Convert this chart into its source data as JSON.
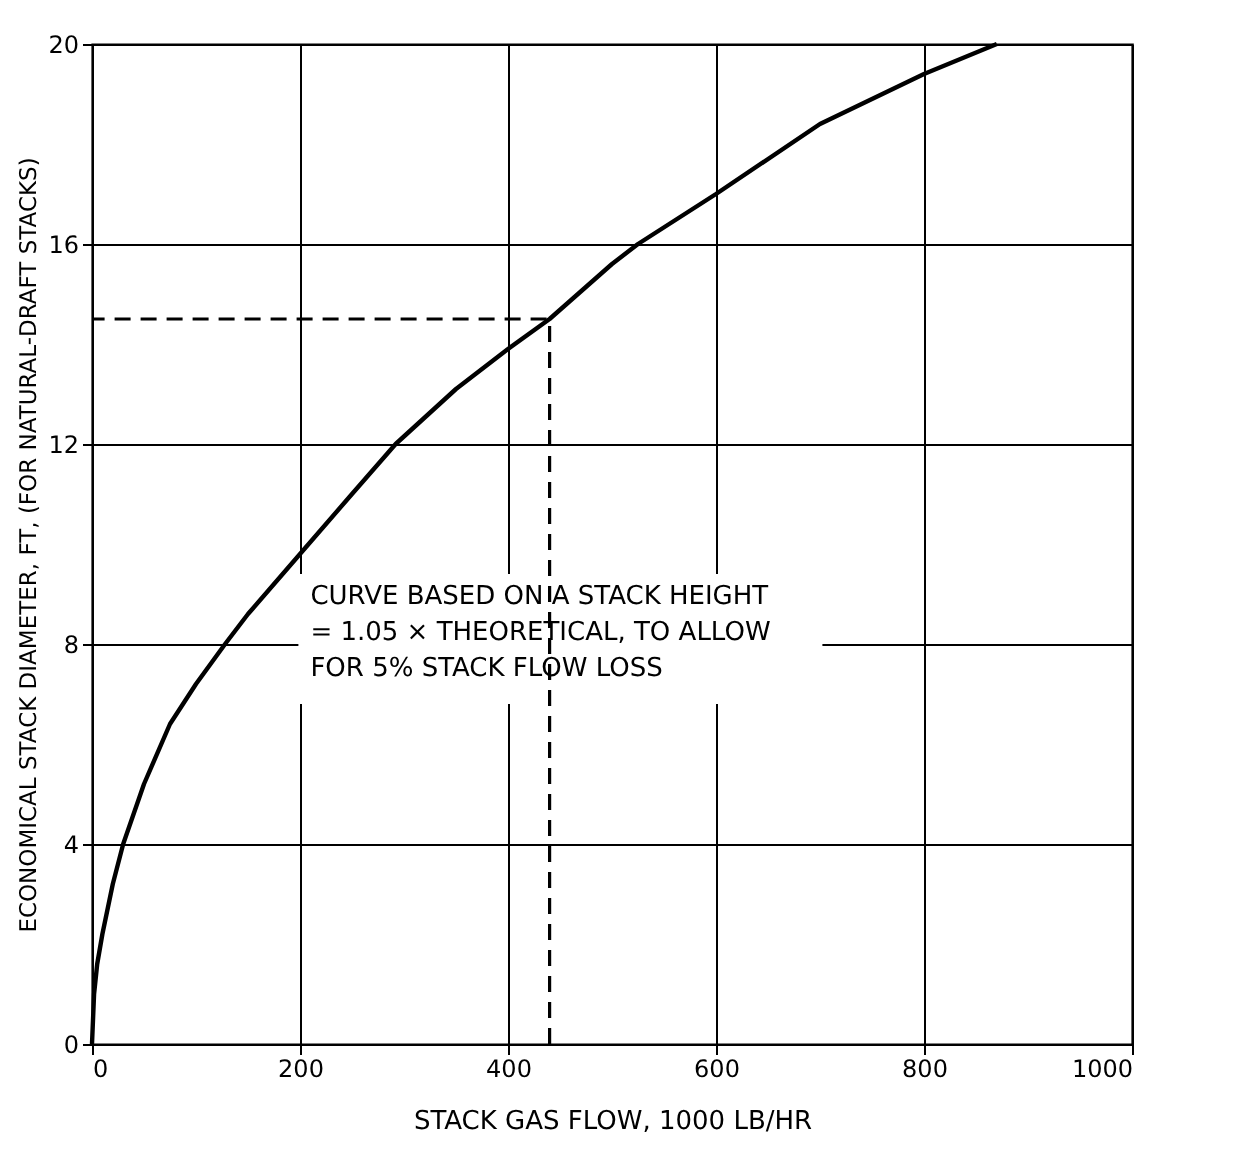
{
  "chart_data": {
    "type": "line",
    "xlabel": "STACK GAS FLOW, 1000 LB/HR",
    "ylabel": "ECONOMICAL STACK DIAMETER, FT, (FOR NATURAL-DRAFT STACKS)",
    "xlim": [
      0,
      1000
    ],
    "xticks": [
      0,
      200,
      400,
      600,
      800,
      1000
    ],
    "ylim": [
      0,
      20
    ],
    "yticks": [
      0,
      4,
      8,
      12,
      16,
      20
    ],
    "grid": true,
    "marker": "none",
    "series": [
      {
        "color": "#000000",
        "line_style": "solid",
        "x": [
          0,
          2,
          5,
          10,
          20,
          30,
          50,
          75,
          100,
          128,
          150,
          200,
          250,
          292,
          350,
          400,
          440,
          500,
          525,
          600,
          700,
          800,
          870
        ],
        "values": [
          0,
          1,
          1.6,
          2.2,
          3.2,
          4,
          5.2,
          6.4,
          7.2,
          8,
          8.6,
          9.8,
          11,
          12,
          13.1,
          13.9,
          14.5,
          15.6,
          16,
          17,
          18.4,
          19.4,
          20
        ]
      },
      {
        "color": "#000000",
        "line_style": "dashed",
        "x": [
          440,
          440,
          0
        ],
        "values": [
          0,
          14.5,
          14.5
        ]
      }
    ],
    "annotations": [
      "CURVE BASED ON A STACK HEIGHT = 1.05 × THEORETICAL, TO ALLOW FOR 5% STACK FLOW LOSS"
    ]
  }
}
